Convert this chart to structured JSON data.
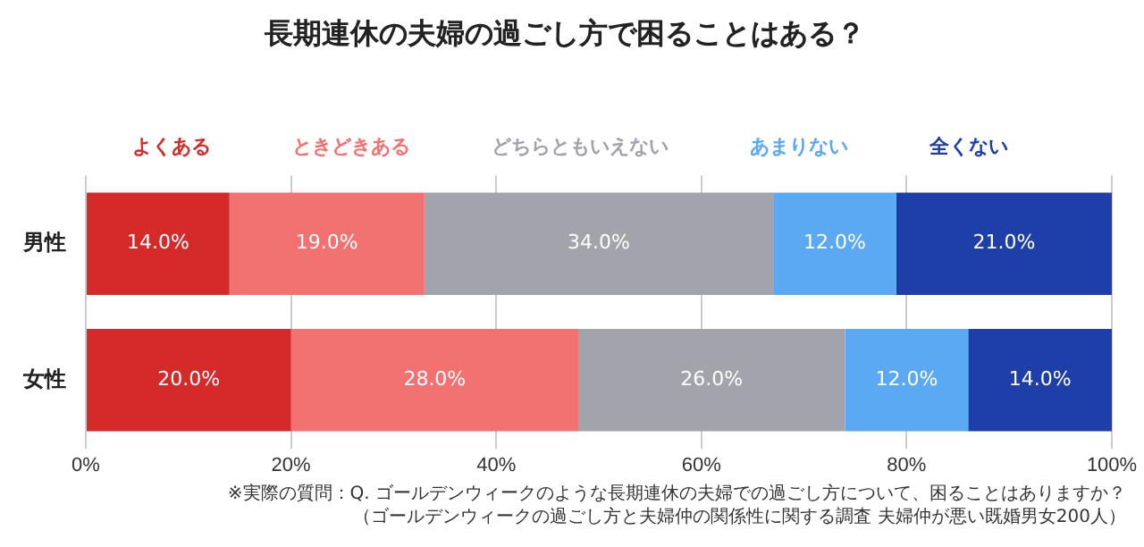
{
  "chart_data": {
    "type": "bar",
    "orientation": "horizontal",
    "stacked": true,
    "title": "長期連休の夫婦の過ごし方で困ることはある？",
    "categories": [
      "男性",
      "女性"
    ],
    "series": [
      {
        "name": "よくある",
        "color": "#d42a2a",
        "values": [
          14.0,
          20.0
        ],
        "value_labels": [
          "14.0%",
          "20.0%"
        ]
      },
      {
        "name": "ときどきある",
        "color": "#f27272",
        "values": [
          19.0,
          28.0
        ],
        "value_labels": [
          "19.0%",
          "28.0%"
        ]
      },
      {
        "name": "どちらともいえない",
        "color": "#a3a3ab",
        "values": [
          34.0,
          26.0
        ],
        "value_labels": [
          "34.0%",
          "26.0%"
        ]
      },
      {
        "name": "あまりない",
        "color": "#5aa9f2",
        "values": [
          12.0,
          12.0
        ],
        "value_labels": [
          "12.0%",
          "12.0%"
        ]
      },
      {
        "name": "全くない",
        "color": "#1f3fa8",
        "values": [
          21.0,
          14.0
        ],
        "value_labels": [
          "21.0%",
          "14.0%"
        ]
      }
    ],
    "xlim": [
      0,
      100
    ],
    "xticks": [
      {
        "value": 0,
        "label": "0%"
      },
      {
        "value": 20,
        "label": "20%"
      },
      {
        "value": 40,
        "label": "40%"
      },
      {
        "value": 60,
        "label": "60%"
      },
      {
        "value": 80,
        "label": "80%"
      },
      {
        "value": 100,
        "label": "100%"
      }
    ],
    "grid": "x",
    "legend": "top",
    "annotations": [
      "※実際の質問：Q. ゴールデンウィークのような長期連休の夫婦での過ごし方について、困ることはありますか？",
      "（ゴールデンウィークの過ごし方と夫婦仲の関係性に関する調査 夫婦仲が悪い既婚男女200人）"
    ]
  }
}
